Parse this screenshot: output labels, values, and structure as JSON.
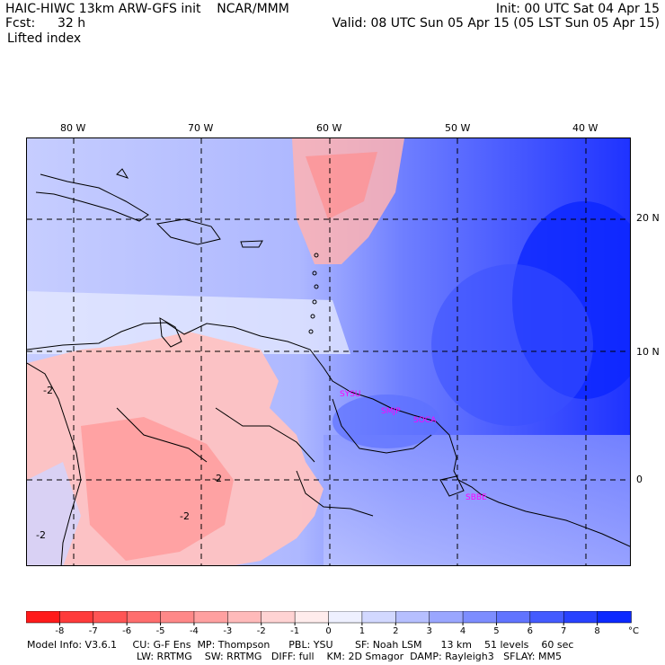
{
  "header": {
    "title_line": "HAIC-HIWC 13km ARW-GFS init    NCAR/MMM",
    "init_line": "Init: 00 UTC Sat 04 Apr 15",
    "fcst_label": "Fcst:",
    "fcst_value": "32 h",
    "valid_line": "Valid: 08 UTC Sun 05 Apr 15 (05 LST Sun 05 Apr 15)",
    "field_name": "Lifted index"
  },
  "map": {
    "lon_labels": [
      "80 W",
      "70 W",
      "60 W",
      "50 W",
      "40 W"
    ],
    "lat_labels": [
      "20 N",
      "10 N",
      "0"
    ],
    "contour_labels": [
      "-2",
      "-2",
      "-2",
      "-2"
    ],
    "stations": [
      {
        "name": "SYSU"
      },
      {
        "name": "SMJP"
      },
      {
        "name": "SOCA"
      },
      {
        "name": "SBBE"
      }
    ],
    "station_color": "#ff00ff"
  },
  "colorbar": {
    "tick_labels": [
      "-8",
      "-7",
      "-6",
      "-5",
      "-4",
      "-3",
      "-2",
      "-1",
      "0",
      "1",
      "2",
      "3",
      "4",
      "5",
      "6",
      "7",
      "8"
    ],
    "unit": "°C",
    "colors": [
      "#ff1a1a",
      "#ff3b3b",
      "#ff5555",
      "#ff6e6e",
      "#ff8888",
      "#ffa0a0",
      "#ffbaba",
      "#ffd3d3",
      "#ffecec",
      "#eef0ff",
      "#d2d8ff",
      "#b6bfff",
      "#9aa6ff",
      "#7d8dff",
      "#6174ff",
      "#445bff",
      "#2842ff",
      "#0c29ff"
    ]
  },
  "footer": {
    "line1": "Model Info: V3.6.1     CU: G-F Ens  MP: Thompson      PBL: YSU       SF: Noah LSM      13 km    51 levels    60 sec",
    "line2": "LW: RRTMG    SW: RRTMG   DIFF: full    KM: 2D Smagor  DAMP: Rayleigh3   SFLAY: MM5"
  }
}
